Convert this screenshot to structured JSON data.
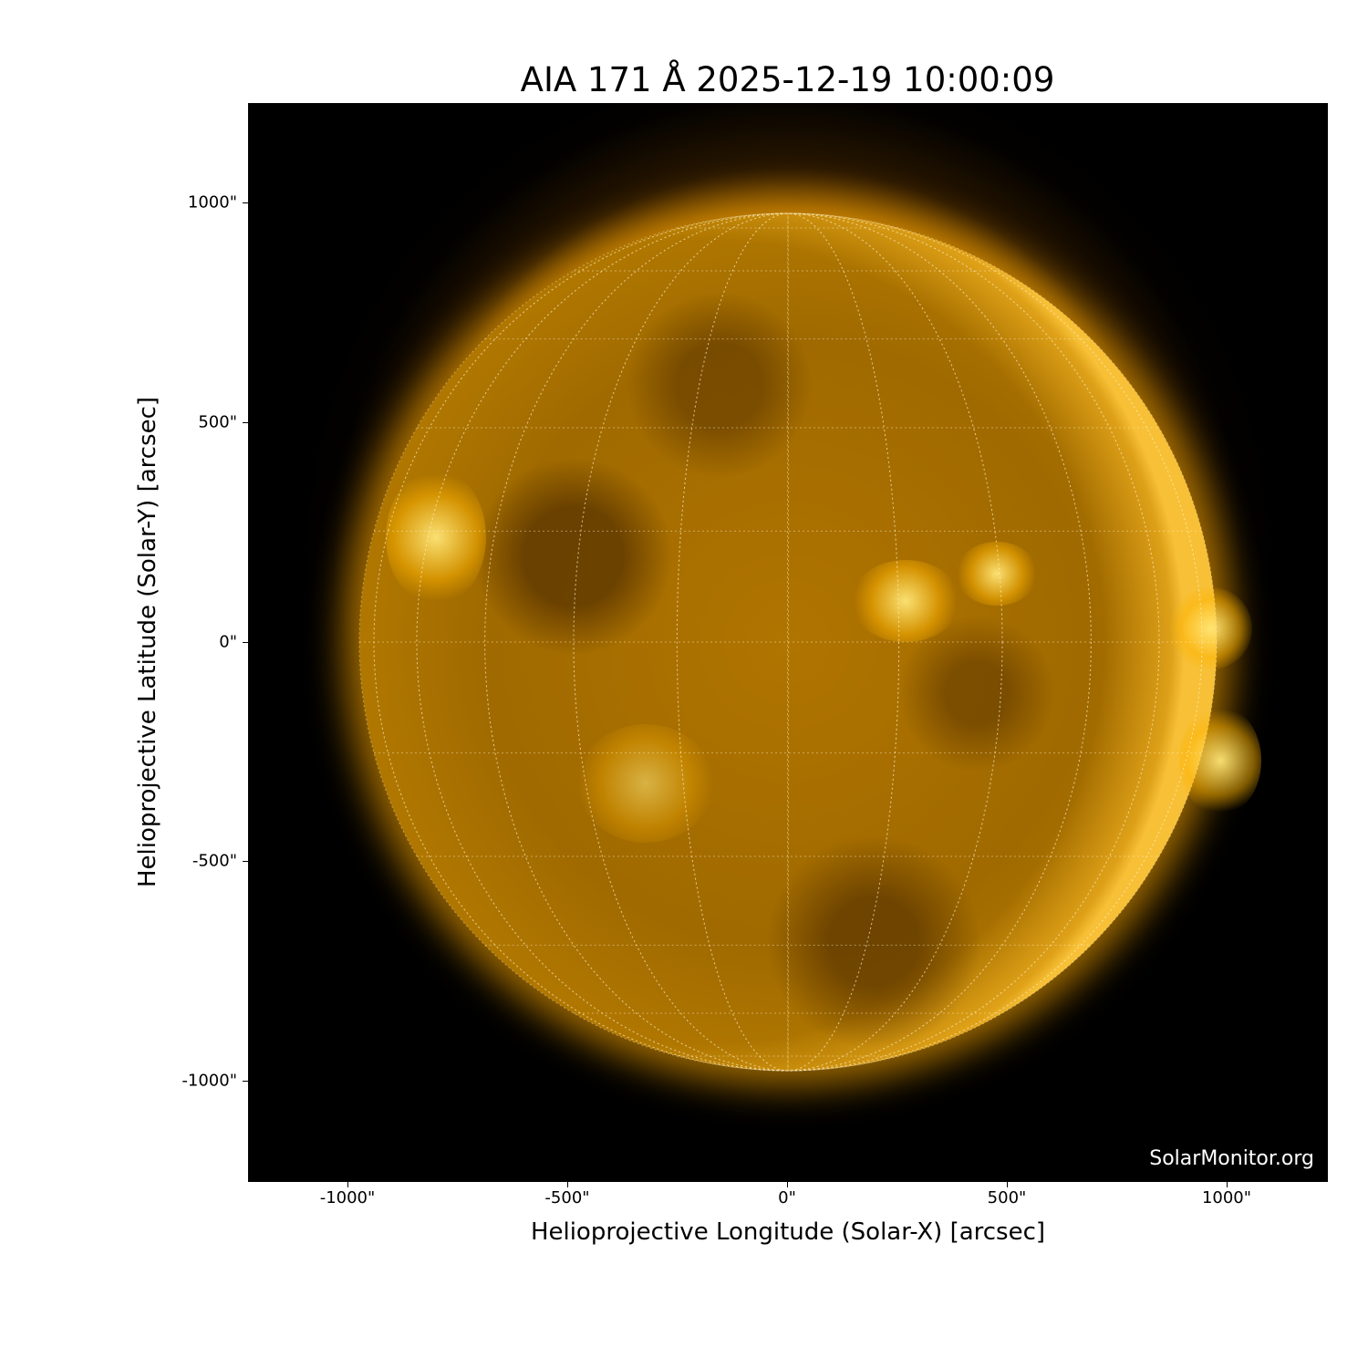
{
  "title": "AIA 171 Å 2025-12-19 10:00:09",
  "watermark": "SolarMonitor.org",
  "xaxis": {
    "label": "Helioprojective Longitude (Solar-X) [arcsec]",
    "ticks": [
      "-1000\"",
      "-500\"",
      "0\"",
      "500\"",
      "1000\""
    ]
  },
  "yaxis": {
    "label": "Helioprojective Latitude (Solar-Y) [arcsec]",
    "ticks": [
      "1000\"",
      "500\"",
      "0\"",
      "-500\"",
      "-1000\""
    ]
  },
  "colors": {
    "sun": "#ffaa00",
    "background": "#000000"
  }
}
